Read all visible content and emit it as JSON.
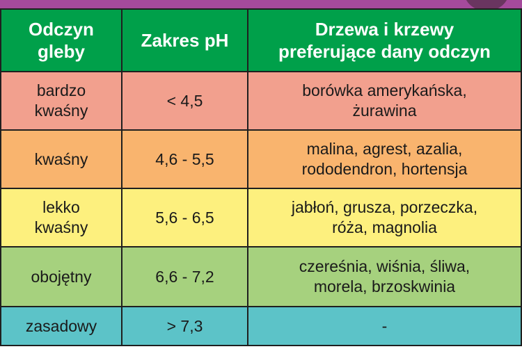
{
  "table": {
    "headers": [
      "Odczyn\ngleby",
      "Zakres pH",
      "Drzewa i krzewy\npreferujące dany odczyn"
    ],
    "rows": [
      {
        "soil": "bardzo\nkwaśny",
        "range": "< 4,5",
        "plants": "borówka amerykańska,\nżurawina",
        "color": "#f2a08e"
      },
      {
        "soil": "kwaśny",
        "range": "4,6 - 5,5",
        "plants": "malina, agrest, azalia,\nrododendron, hortensja",
        "color": "#f9b46e"
      },
      {
        "soil": "lekko\nkwaśny",
        "range": "5,6 - 6,5",
        "plants": "jabłoń, grusza, porzeczka,\nróża, magnolia",
        "color": "#fdf07e"
      },
      {
        "soil": "obojętny",
        "range": "6,6 - 7,2",
        "plants": "czereśnia, wiśnia, śliwa,\nmorela, brzoskwinia",
        "color": "#a6d17e"
      },
      {
        "soil": "zasadowy",
        "range": "> 7,3",
        "plants": "-",
        "color": "#5cc3c8"
      }
    ]
  },
  "colors": {
    "header": "#00a04a",
    "top_strip": "#a54a9c"
  }
}
